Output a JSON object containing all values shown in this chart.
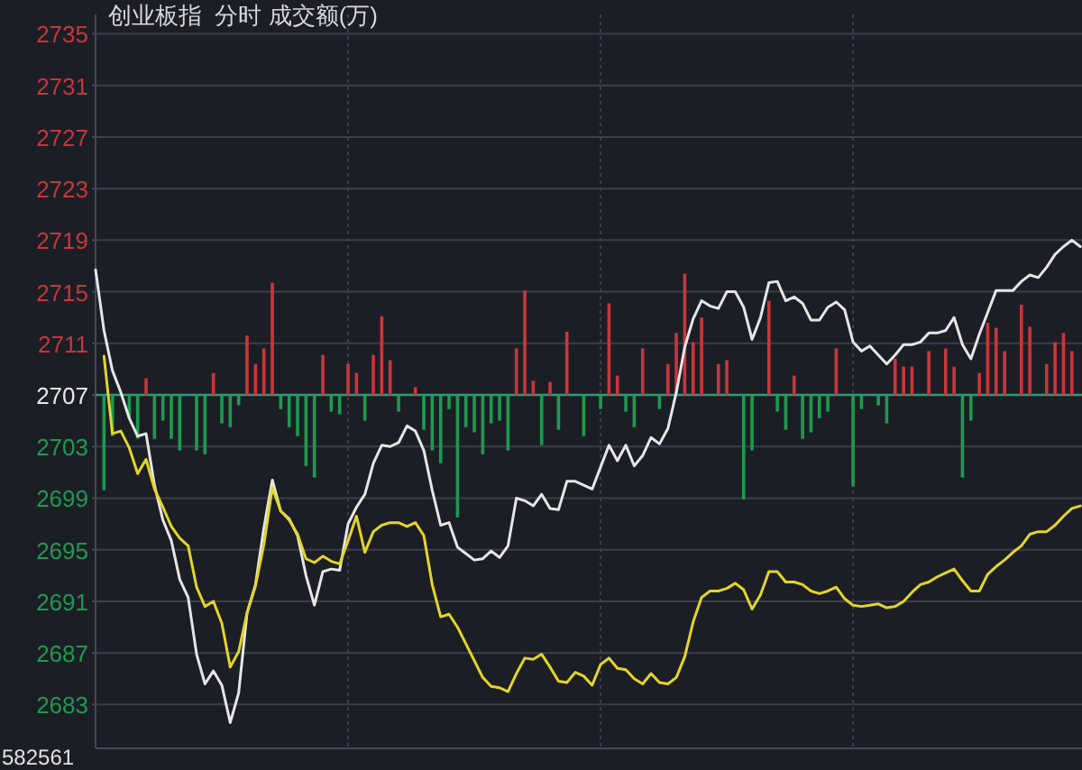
{
  "chart_data": {
    "type": "line",
    "title": "创业板指  分时 成交额(万)",
    "categories": [
      null,
      null,
      null,
      null,
      null,
      null,
      null,
      null,
      null,
      null,
      null,
      null,
      null,
      null,
      null,
      null,
      null,
      null,
      null,
      null,
      null,
      null,
      null,
      null,
      null,
      null,
      null,
      null,
      null,
      null,
      null,
      null,
      null,
      null,
      null,
      null,
      null,
      null,
      null,
      null,
      null,
      null,
      null,
      null,
      null,
      null,
      null,
      null,
      null,
      null,
      null,
      null,
      null,
      null,
      null,
      null,
      null,
      null,
      null,
      null,
      null,
      null,
      null,
      null,
      null,
      null,
      null,
      null,
      null,
      null,
      null,
      null,
      null,
      null,
      null,
      null,
      null,
      null,
      null,
      null,
      null,
      null,
      null,
      null,
      null,
      null,
      null,
      null,
      null,
      null,
      null,
      null,
      null,
      null,
      null,
      null,
      null,
      null,
      null,
      null,
      null,
      null,
      null,
      null,
      null,
      null,
      null,
      null,
      null,
      null,
      null,
      null,
      null,
      null,
      null,
      null,
      null,
      null
    ],
    "ylim": [
      2679.6,
      2736.5
    ],
    "yticks": [
      2683,
      2687,
      2691,
      2695,
      2699,
      2703,
      2707,
      2711,
      2715,
      2719,
      2723,
      2727,
      2731,
      2735
    ],
    "grid": true,
    "ref_lines": [
      {
        "axis": "y",
        "value": 2707,
        "color": "#2e9c78"
      }
    ],
    "series": [
      {
        "type": "bar",
        "color": "#c8363a",
        "base": [
          null,
          null,
          null,
          null,
          null,
          null,
          2707,
          null,
          null,
          null,
          null,
          null,
          null,
          null,
          2707,
          null,
          null,
          null,
          2707,
          2707,
          2707,
          2707,
          null,
          null,
          null,
          null,
          null,
          2707,
          null,
          null,
          2707,
          2707,
          null,
          2707,
          2707,
          2707,
          null,
          null,
          2707,
          null,
          null,
          null,
          null,
          null,
          null,
          null,
          null,
          null,
          null,
          null,
          2707,
          2707,
          2707,
          null,
          2707,
          null,
          2707,
          null,
          null,
          null,
          null,
          2707,
          2707,
          null,
          null,
          2707,
          null,
          null,
          2707,
          2707,
          2707,
          2707,
          2707,
          null,
          2707,
          2707,
          null,
          null,
          null,
          null,
          2707,
          null,
          null,
          2707,
          null,
          null,
          null,
          null,
          2707,
          null,
          null,
          null,
          null,
          null,
          null,
          2707,
          2707,
          2707,
          null,
          2707,
          null,
          2707,
          2707,
          null,
          null,
          2707,
          2707,
          2707,
          2707,
          null,
          2707,
          2707,
          null,
          2707,
          2707,
          2707,
          2707,
          null
        ],
        "values": [
          null,
          null,
          null,
          null,
          null,
          null,
          1.3,
          null,
          null,
          null,
          null,
          null,
          null,
          null,
          1.7,
          null,
          null,
          null,
          4.6,
          2.4,
          3.6,
          8.7,
          null,
          null,
          null,
          null,
          null,
          3.1,
          null,
          null,
          2.4,
          1.7,
          null,
          3.1,
          6.1,
          2.7,
          null,
          null,
          0.6,
          null,
          null,
          null,
          null,
          null,
          null,
          null,
          null,
          null,
          null,
          null,
          3.6,
          8.1,
          1.1,
          null,
          1.0,
          null,
          4.9,
          null,
          null,
          null,
          null,
          7.1,
          1.5,
          null,
          null,
          3.6,
          null,
          null,
          2.4,
          4.8,
          9.4,
          4.1,
          6.0,
          null,
          2.4,
          2.7,
          null,
          null,
          null,
          null,
          7.3,
          null,
          null,
          1.5,
          null,
          null,
          null,
          null,
          3.6,
          null,
          null,
          null,
          null,
          null,
          null,
          2.8,
          2.2,
          2.2,
          null,
          3.4,
          null,
          3.6,
          2.2,
          null,
          null,
          1.7,
          5.6,
          5.2,
          3.4,
          null,
          7.0,
          5.3,
          null,
          2.4,
          4.1,
          4.8,
          3.4,
          null
        ]
      },
      {
        "type": "bar",
        "color": "#1f9a4e",
        "base": [
          null,
          2707,
          2707,
          null,
          2707,
          2707,
          null,
          2707,
          2707,
          2707,
          2707,
          null,
          2707,
          2707,
          null,
          2707,
          2707,
          2707,
          null,
          null,
          null,
          null,
          2707,
          2707,
          2707,
          2707,
          2707,
          null,
          2707,
          2707,
          null,
          null,
          2707,
          null,
          null,
          null,
          2707,
          null,
          null,
          2707,
          2707,
          2707,
          2707,
          2707,
          2707,
          2707,
          2707,
          2707,
          2707,
          2707,
          null,
          null,
          null,
          2707,
          null,
          2707,
          null,
          null,
          2707,
          null,
          2707,
          null,
          null,
          2707,
          2707,
          null,
          null,
          2707,
          null,
          null,
          null,
          null,
          null,
          null,
          null,
          null,
          null,
          2707,
          2707,
          null,
          null,
          2707,
          2707,
          null,
          2707,
          2707,
          2707,
          2707,
          null,
          null,
          2707,
          2707,
          null,
          2707,
          2707,
          null,
          null,
          null,
          null,
          null,
          null,
          null,
          null,
          2707,
          2707,
          null,
          null,
          null,
          null,
          null,
          null,
          null,
          null,
          null,
          null,
          null,
          null,
          null
        ],
        "values": [
          null,
          -7.4,
          -3.2,
          null,
          -1.8,
          -3.4,
          null,
          -3.4,
          -2.0,
          -3.4,
          -4.3,
          null,
          -4.3,
          -4.6,
          null,
          -2.2,
          -2.5,
          -0.8,
          null,
          null,
          null,
          null,
          -1.1,
          -2.5,
          -3.2,
          -5.5,
          -6.4,
          null,
          -1.3,
          -1.5,
          null,
          null,
          -2.0,
          null,
          null,
          null,
          -1.3,
          null,
          null,
          -2.7,
          -4.3,
          -5.3,
          -1.1,
          -9.5,
          -2.5,
          -2.9,
          -4.6,
          -2.2,
          -2.0,
          -4.3,
          null,
          null,
          null,
          -3.9,
          null,
          -2.7,
          null,
          null,
          -3.2,
          null,
          -1.1,
          null,
          null,
          -1.3,
          -2.5,
          null,
          null,
          -1.1,
          null,
          null,
          null,
          null,
          null,
          null,
          null,
          null,
          null,
          -8.1,
          -4.3,
          null,
          null,
          -1.3,
          -2.7,
          null,
          -3.4,
          -2.9,
          -1.8,
          -1.3,
          null,
          null,
          -7.1,
          -1.1,
          null,
          -0.8,
          -2.2,
          null,
          null,
          null,
          null,
          null,
          null,
          null,
          null,
          -6.4,
          -2.0,
          null,
          null,
          null,
          null,
          null,
          null,
          null,
          null,
          null,
          null,
          null,
          null,
          null
        ]
      },
      {
        "color": "#e6e6e6",
        "values": [
          2716.7,
          2712.0,
          2708.9,
          2707.2,
          2705.2,
          2703.8,
          2704.0,
          2700.0,
          2697.3,
          2695.7,
          2692.7,
          2691.3,
          2686.9,
          2684.6,
          2685.6,
          2684.5,
          2681.6,
          2683.9,
          2690.1,
          2692.3,
          2696.7,
          2700.4,
          2698.0,
          2697.4,
          2696.1,
          2693.0,
          2690.7,
          2693.3,
          2693.5,
          2693.4,
          2697.0,
          2698.3,
          2699.3,
          2701.7,
          2703.1,
          2703.0,
          2703.3,
          2704.6,
          2704.2,
          2702.7,
          2699.6,
          2696.9,
          2697.1,
          2695.2,
          2694.7,
          2694.2,
          2694.3,
          2694.9,
          2694.4,
          2695.3,
          2699.0,
          2698.8,
          2698.4,
          2699.3,
          2698.2,
          2698.1,
          2700.3,
          2700.3,
          2700.0,
          2699.7,
          2701.4,
          2703.1,
          2701.9,
          2703.1,
          2701.5,
          2702.3,
          2703.7,
          2703.2,
          2704.4,
          2707.2,
          2710.7,
          2712.9,
          2714.3,
          2713.9,
          2713.7,
          2715.0,
          2715.0,
          2713.8,
          2711.3,
          2713.0,
          2715.7,
          2715.8,
          2714.3,
          2714.6,
          2714.1,
          2712.8,
          2712.8,
          2713.8,
          2714.2,
          2713.6,
          2711.1,
          2710.4,
          2710.8,
          2710.1,
          2709.4,
          2710.1,
          2710.9,
          2710.9,
          2711.1,
          2711.8,
          2711.8,
          2712.0,
          2713.0,
          2710.9,
          2709.8,
          2711.7,
          2713.4,
          2715.1,
          2715.1,
          2715.1,
          2715.8,
          2716.3,
          2716.1,
          2716.9,
          2717.9,
          2718.5,
          2719.0,
          2718.5
        ]
      },
      {
        "color": "#e3d52a",
        "values": [
          null,
          2710.0,
          2704.0,
          2704.2,
          2702.9,
          2700.9,
          2702.0,
          2699.7,
          2698.3,
          2696.8,
          2695.9,
          2695.3,
          2692.1,
          2690.6,
          2691.0,
          2689.3,
          2685.9,
          2687.1,
          2690.1,
          2692.2,
          2695.4,
          2699.8,
          2698.0,
          2697.3,
          2696.2,
          2694.3,
          2694.0,
          2694.5,
          2694.1,
          2693.9,
          2695.7,
          2697.6,
          2694.8,
          2696.4,
          2696.9,
          2697.1,
          2697.1,
          2696.8,
          2697.1,
          2696.1,
          2692.3,
          2689.8,
          2690.0,
          2689.0,
          2687.7,
          2686.4,
          2685.1,
          2684.4,
          2684.3,
          2684.0,
          2685.4,
          2686.6,
          2686.5,
          2686.9,
          2685.9,
          2684.8,
          2684.7,
          2685.5,
          2685.2,
          2684.5,
          2686.1,
          2686.6,
          2685.8,
          2685.7,
          2685.0,
          2684.6,
          2685.4,
          2684.7,
          2684.6,
          2685.1,
          2686.7,
          2689.4,
          2691.3,
          2691.8,
          2691.8,
          2692.0,
          2692.4,
          2691.9,
          2690.4,
          2691.5,
          2693.3,
          2693.3,
          2692.5,
          2692.5,
          2692.3,
          2691.8,
          2691.6,
          2691.8,
          2692.1,
          2691.2,
          2690.7,
          2690.6,
          2690.7,
          2690.8,
          2690.5,
          2690.6,
          2691.0,
          2691.7,
          2692.3,
          2692.5,
          2692.9,
          2693.2,
          2693.5,
          2692.6,
          2691.8,
          2691.8,
          2693.1,
          2693.7,
          2694.2,
          2694.8,
          2695.3,
          2696.2,
          2696.4,
          2696.4,
          2696.9,
          2697.6,
          2698.2,
          2698.4
        ]
      }
    ],
    "annotations": [
      "582561"
    ]
  }
}
